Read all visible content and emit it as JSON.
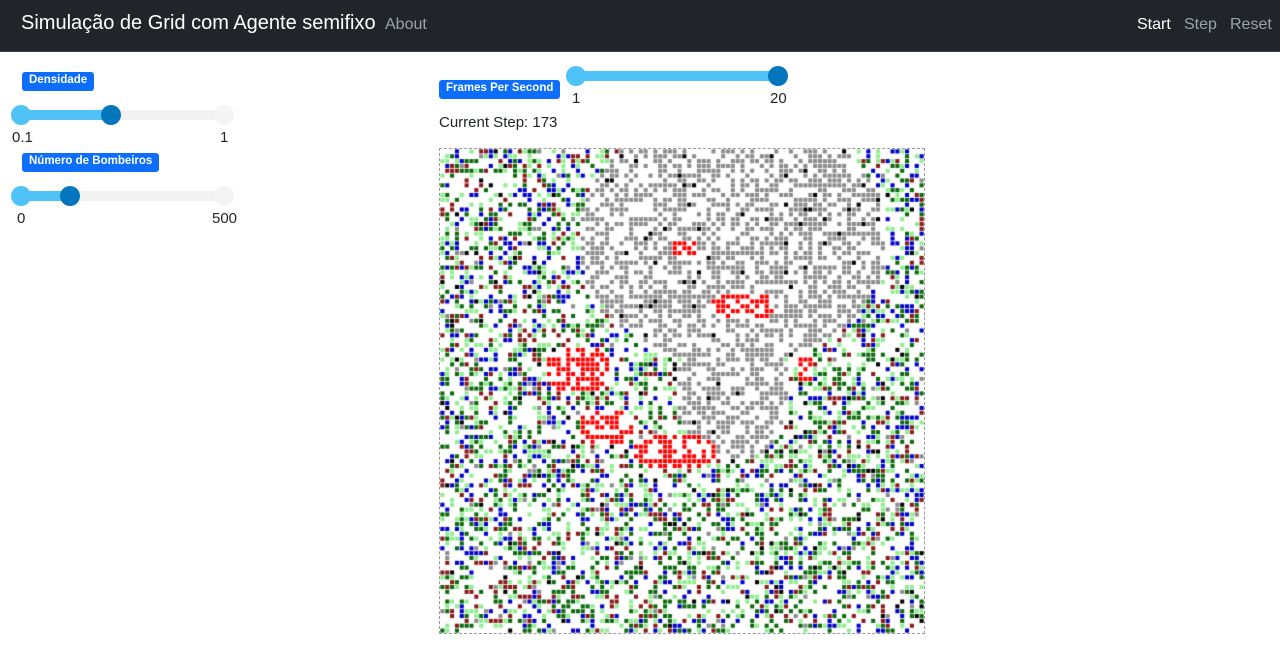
{
  "navbar": {
    "brand": "Simulação de Grid com Agente semifixo",
    "about": "About",
    "start": "Start",
    "step": "Step",
    "reset": "Reset"
  },
  "controls": {
    "density": {
      "label": "Densidade",
      "min": "0.1",
      "max": "1",
      "value": 0.5
    },
    "firefighters": {
      "label": "Número de Bombeiros",
      "min": "0",
      "max": "500",
      "value": 120
    },
    "fps": {
      "label": "Frames Per Second",
      "min": "1",
      "max": "20",
      "value": 20
    }
  },
  "status": {
    "current_step_label": "Current Step:",
    "current_step": "173",
    "current_step_text": "Current Step: 173"
  },
  "grid": {
    "size": 100,
    "colors": {
      "tree_dark_green": "#0b6b0b",
      "tree_light_green": "#90ee90",
      "firefighter_blue": "#0000cc",
      "tree_dark_red": "#8b1a1a",
      "fire_red": "#ff0000",
      "burnt_gray": "#8c8c8c",
      "black": "#000000",
      "empty": "#ffffff"
    }
  }
}
